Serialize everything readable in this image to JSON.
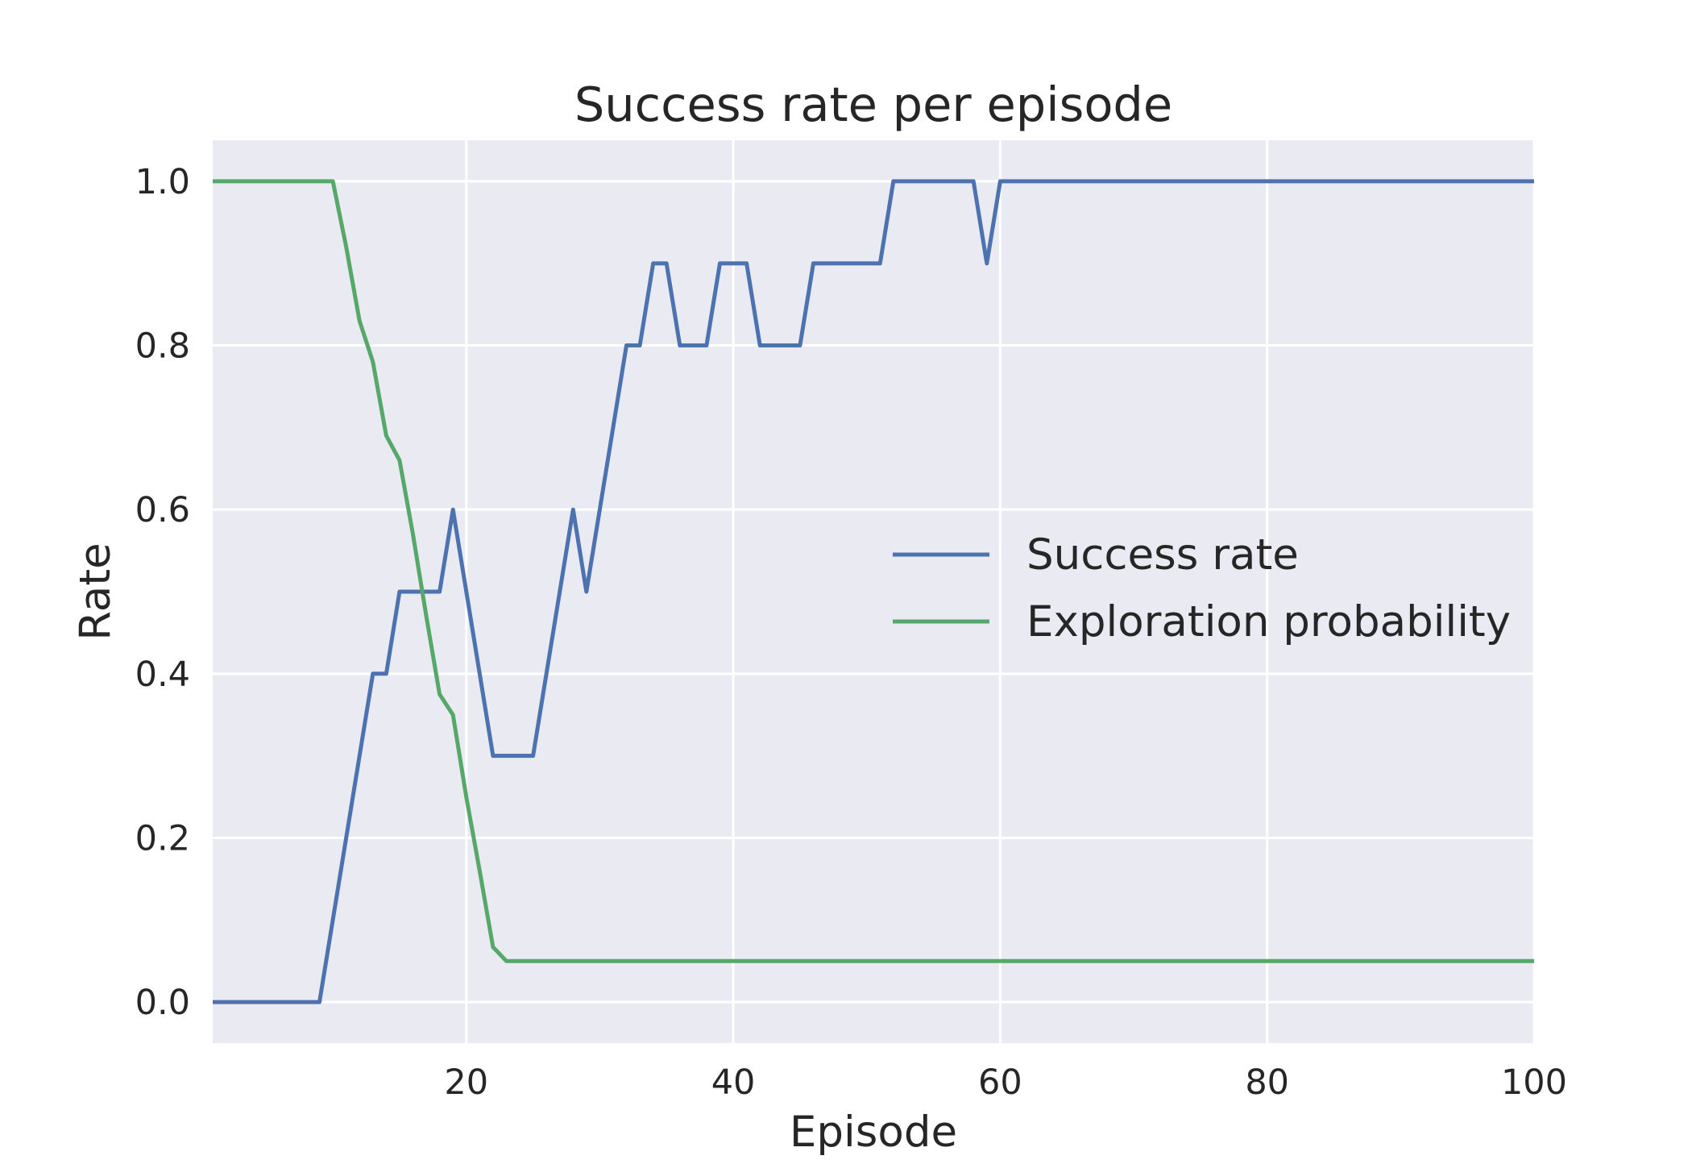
{
  "chart_data": {
    "type": "line",
    "title": "Success rate per episode",
    "xlabel": "Episode",
    "ylabel": "Rate",
    "xlim": [
      1,
      100
    ],
    "ylim": [
      -0.05,
      1.05
    ],
    "xticks": [
      20,
      40,
      60,
      80,
      100
    ],
    "xtick_labels": [
      "20",
      "40",
      "60",
      "80",
      "100"
    ],
    "yticks": [
      0.0,
      0.2,
      0.4,
      0.6,
      0.8,
      1.0
    ],
    "ytick_labels": [
      "0.0",
      "0.2",
      "0.4",
      "0.6",
      "0.8",
      "1.0"
    ],
    "grid": true,
    "legend_position": "center-right",
    "series": [
      {
        "name": "Success rate",
        "color": "#4c72b0",
        "points": [
          [
            1,
            0
          ],
          [
            9,
            0
          ],
          [
            13,
            0.4
          ],
          [
            14,
            0.4
          ],
          [
            15,
            0.5
          ],
          [
            18,
            0.5
          ],
          [
            19,
            0.6
          ],
          [
            22,
            0.3
          ],
          [
            25,
            0.3
          ],
          [
            28,
            0.6
          ],
          [
            29,
            0.5
          ],
          [
            32,
            0.8
          ],
          [
            33,
            0.8
          ],
          [
            34,
            0.9
          ],
          [
            35,
            0.9
          ],
          [
            36,
            0.8
          ],
          [
            38,
            0.8
          ],
          [
            39,
            0.9
          ],
          [
            41,
            0.9
          ],
          [
            42,
            0.8
          ],
          [
            45,
            0.8
          ],
          [
            46,
            0.9
          ],
          [
            51,
            0.9
          ],
          [
            52,
            1.0
          ],
          [
            58,
            1.0
          ],
          [
            59,
            0.9
          ],
          [
            60,
            1.0
          ],
          [
            100,
            1.0
          ]
        ]
      },
      {
        "name": "Exploration probability",
        "color": "#55a868",
        "points": [
          [
            1,
            1.0
          ],
          [
            10,
            1.0
          ],
          [
            11,
            0.92
          ],
          [
            12,
            0.83
          ],
          [
            13,
            0.78
          ],
          [
            14,
            0.69
          ],
          [
            15,
            0.66
          ],
          [
            16,
            0.57
          ],
          [
            17,
            0.47
          ],
          [
            18,
            0.375
          ],
          [
            19,
            0.35
          ],
          [
            20,
            0.25
          ],
          [
            21,
            0.16
          ],
          [
            22,
            0.067
          ],
          [
            23,
            0.05
          ],
          [
            100,
            0.05
          ]
        ]
      }
    ]
  }
}
